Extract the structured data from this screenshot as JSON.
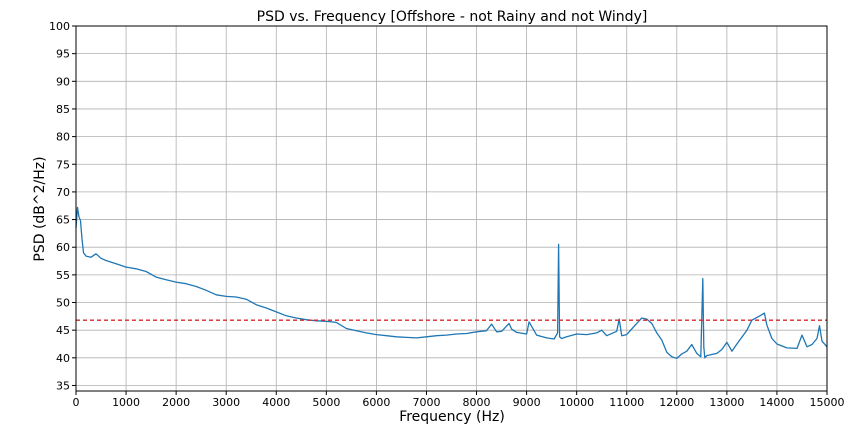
{
  "chart_data": {
    "type": "line",
    "title": "PSD vs. Frequency [Offshore - not Rainy and not Windy]",
    "xlabel": "Frequency (Hz)",
    "ylabel": "PSD (dB^2/Hz)",
    "xlim": [
      0,
      15000
    ],
    "ylim": [
      34,
      100
    ],
    "xticks": [
      0,
      1000,
      2000,
      3000,
      4000,
      5000,
      6000,
      7000,
      8000,
      9000,
      10000,
      11000,
      12000,
      13000,
      14000,
      15000
    ],
    "yticks": [
      35,
      40,
      45,
      50,
      55,
      60,
      65,
      70,
      75,
      80,
      85,
      90,
      95,
      100
    ],
    "grid": true,
    "threshold": {
      "y": 46.8,
      "color": "#d62728",
      "style": "dashed"
    },
    "series": [
      {
        "color": "#1f77b4",
        "x": [
          0,
          30,
          60,
          90,
          120,
          150,
          200,
          300,
          400,
          500,
          600,
          800,
          1000,
          1200,
          1400,
          1600,
          1800,
          2000,
          2200,
          2400,
          2600,
          2800,
          3000,
          3200,
          3400,
          3600,
          3800,
          4000,
          4200,
          4400,
          4600,
          4800,
          5000,
          5200,
          5400,
          5600,
          5800,
          6000,
          6200,
          6400,
          6600,
          6800,
          7000,
          7200,
          7400,
          7600,
          7800,
          8000,
          8200,
          8300,
          8400,
          8500,
          8650,
          8700,
          8800,
          9000,
          9050,
          9200,
          9400,
          9550,
          9620,
          9640,
          9660,
          9700,
          9800,
          10000,
          10200,
          10400,
          10500,
          10600,
          10800,
          10850,
          10900,
          11000,
          11200,
          11300,
          11400,
          11500,
          11600,
          11700,
          11800,
          11900,
          12000,
          12100,
          12200,
          12300,
          12400,
          12480,
          12520,
          12540,
          12560,
          12600,
          12800,
          12900,
          13000,
          13100,
          13200,
          13400,
          13500,
          13600,
          13700,
          13750,
          13800,
          13900,
          14000,
          14200,
          14400,
          14500,
          14600,
          14700,
          14800,
          14850,
          14900,
          15000
        ],
        "y": [
          63.5,
          67.2,
          65.5,
          64.8,
          61.5,
          59.0,
          58.4,
          58.2,
          58.8,
          58.0,
          57.6,
          57.0,
          56.4,
          56.1,
          55.6,
          54.6,
          54.1,
          53.7,
          53.4,
          52.9,
          52.2,
          51.4,
          51.1,
          51.0,
          50.6,
          49.6,
          49.0,
          48.3,
          47.6,
          47.2,
          46.9,
          46.7,
          46.6,
          46.4,
          45.3,
          44.9,
          44.5,
          44.2,
          44.0,
          43.8,
          43.7,
          43.6,
          43.8,
          44.0,
          44.1,
          44.3,
          44.4,
          44.7,
          44.9,
          46.1,
          44.7,
          44.8,
          46.2,
          45.2,
          44.6,
          44.3,
          46.5,
          44.1,
          43.6,
          43.4,
          44.5,
          60.5,
          43.8,
          43.5,
          43.8,
          44.3,
          44.2,
          44.5,
          45.0,
          44.0,
          44.8,
          47.0,
          44.0,
          44.2,
          46.2,
          47.2,
          47.0,
          46.2,
          44.5,
          43.2,
          41.0,
          40.2,
          39.9,
          40.7,
          41.2,
          42.4,
          40.8,
          40.2,
          54.3,
          42.0,
          40.0,
          40.4,
          40.8,
          41.5,
          42.8,
          41.2,
          42.5,
          45.0,
          46.8,
          47.3,
          47.8,
          48.1,
          45.9,
          43.5,
          42.5,
          41.8,
          41.7,
          44.1,
          42.0,
          42.4,
          43.5,
          45.8,
          43.0,
          42.0
        ]
      }
    ]
  }
}
